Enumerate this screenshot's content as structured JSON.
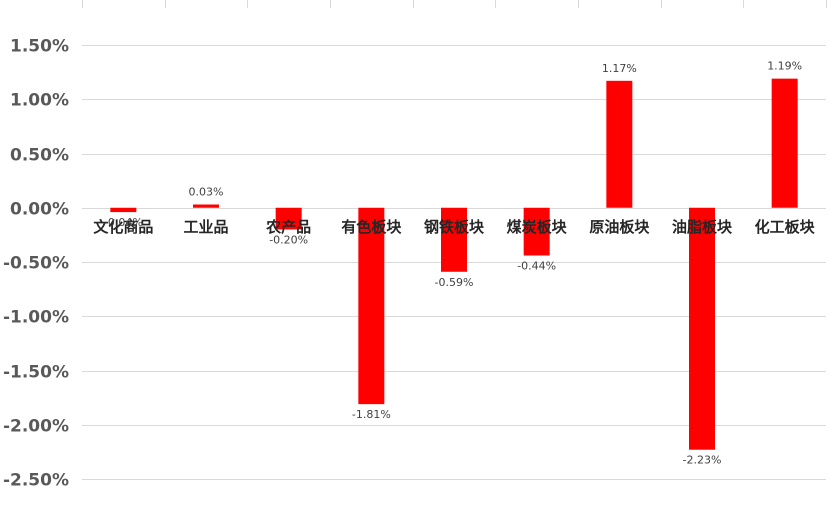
{
  "chart_data": {
    "type": "bar",
    "categories": [
      "文化商品",
      "工业品",
      "农产品",
      "有色板块",
      "钢铁板块",
      "煤炭板块",
      "原油板块",
      "油脂板块",
      "化工板块"
    ],
    "values": [
      -0.04,
      0.03,
      -0.2,
      -1.81,
      -0.59,
      -0.44,
      1.17,
      -2.23,
      1.19
    ],
    "data_labels": [
      "-0.04%",
      "0.03%",
      "-0.20%",
      "-1.81%",
      "-0.59%",
      "-0.44%",
      "1.17%",
      "-2.23%",
      "1.19%"
    ],
    "yticks": [
      "1.50%",
      "1.00%",
      "0.50%",
      "0.00%",
      "-0.50%",
      "-1.00%",
      "-1.50%",
      "-2.00%",
      "-2.50%"
    ],
    "ytick_values": [
      1.5,
      1.0,
      0.5,
      0.0,
      -0.5,
      -1.0,
      -1.5,
      -2.0,
      -2.5
    ],
    "ylim": [
      -2.5,
      1.5
    ],
    "bar_color": "#ff0000",
    "grid": true,
    "legend": "none",
    "title": "",
    "xlabel": "",
    "ylabel": ""
  }
}
